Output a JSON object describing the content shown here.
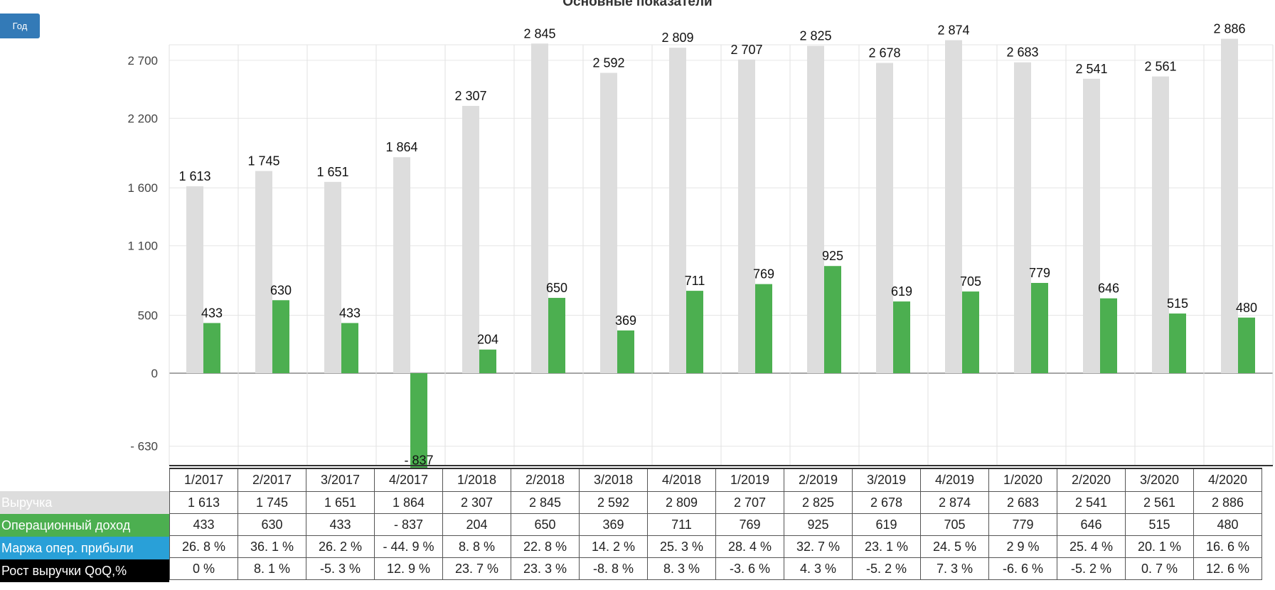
{
  "title": "Основные показатели",
  "period_button": "Год",
  "colors": {
    "revenue": "#dddddd",
    "op_income": "#4caf50",
    "margin_legend": "#29a0d8",
    "growth_legend": "#000000",
    "button": "#337ab7"
  },
  "chart_data": {
    "type": "bar",
    "title": "Основные показатели",
    "categories": [
      "1/2017",
      "2/2017",
      "3/2017",
      "4/2017",
      "1/2018",
      "2/2018",
      "3/2018",
      "4/2018",
      "1/2019",
      "2/2019",
      "3/2019",
      "4/2019",
      "1/2020",
      "2/2020",
      "3/2020",
      "4/2020"
    ],
    "y_ticks": [
      -630,
      0,
      500,
      1100,
      1600,
      2200,
      2700
    ],
    "y_tick_labels": [
      "- 630",
      "0",
      "500",
      "1 100",
      "1 600",
      "2 200",
      "2 700"
    ],
    "ylim": [
      -830,
      3100
    ],
    "grid": true,
    "series": [
      {
        "name": "Выручка",
        "values": [
          1613,
          1745,
          1651,
          1864,
          2307,
          2845,
          2592,
          2809,
          2707,
          2825,
          2678,
          2874,
          2683,
          2541,
          2561,
          2886
        ],
        "labels": [
          "1 613",
          "1 745",
          "1 651",
          "1 864",
          "2 307",
          "2 845",
          "2 592",
          "2 809",
          "2 707",
          "2 825",
          "2 678",
          "2 874",
          "2 683",
          "2 541",
          "2 561",
          "2 886"
        ]
      },
      {
        "name": "Операционный доход",
        "values": [
          433,
          630,
          433,
          -837,
          204,
          650,
          369,
          711,
          769,
          925,
          619,
          705,
          779,
          646,
          515,
          480
        ],
        "labels": [
          "433",
          "630",
          "433",
          "- 837",
          "204",
          "650",
          "369",
          "711",
          "769",
          "925",
          "619",
          "705",
          "779",
          "646",
          "515",
          "480"
        ]
      }
    ]
  },
  "table": {
    "header": [
      "1/2017",
      "2/2017",
      "3/2017",
      "4/2017",
      "1/2018",
      "2/2018",
      "3/2018",
      "4/2018",
      "1/2019",
      "2/2019",
      "3/2019",
      "4/2019",
      "1/2020",
      "2/2020",
      "3/2020",
      "4/2020"
    ],
    "rows": [
      {
        "label": "Выручка",
        "cells": [
          "1 613",
          "1 745",
          "1 651",
          "1 864",
          "2 307",
          "2 845",
          "2 592",
          "2 809",
          "2 707",
          "2 825",
          "2 678",
          "2 874",
          "2 683",
          "2 541",
          "2 561",
          "2 886"
        ]
      },
      {
        "label": "Операционный доход",
        "cells": [
          "433",
          "630",
          "433",
          "- 837",
          "204",
          "650",
          "369",
          "711",
          "769",
          "925",
          "619",
          "705",
          "779",
          "646",
          "515",
          "480"
        ]
      },
      {
        "label": "Маржа опер. прибыли",
        "cells": [
          "26. 8 %",
          "36. 1 %",
          "26. 2 %",
          "- 44. 9 %",
          "8. 8 %",
          "22. 8 %",
          "14. 2 %",
          "25. 3 %",
          "28. 4 %",
          "32. 7 %",
          "23. 1 %",
          "24. 5 %",
          "2 9 %",
          "25. 4 %",
          "20. 1 %",
          "16. 6 %"
        ]
      },
      {
        "label": "Рост выручки QoQ,%",
        "cells": [
          "0 %",
          "8. 1 %",
          "-5. 3 %",
          "12. 9 %",
          "23. 7 %",
          "23. 3 %",
          "-8. 8 %",
          "8. 3 %",
          "-3. 6 %",
          "4. 3 %",
          "-5. 2 %",
          "7. 3 %",
          "-6. 6 %",
          "-5. 2 %",
          "0. 7 %",
          "12. 6 %"
        ]
      }
    ]
  }
}
